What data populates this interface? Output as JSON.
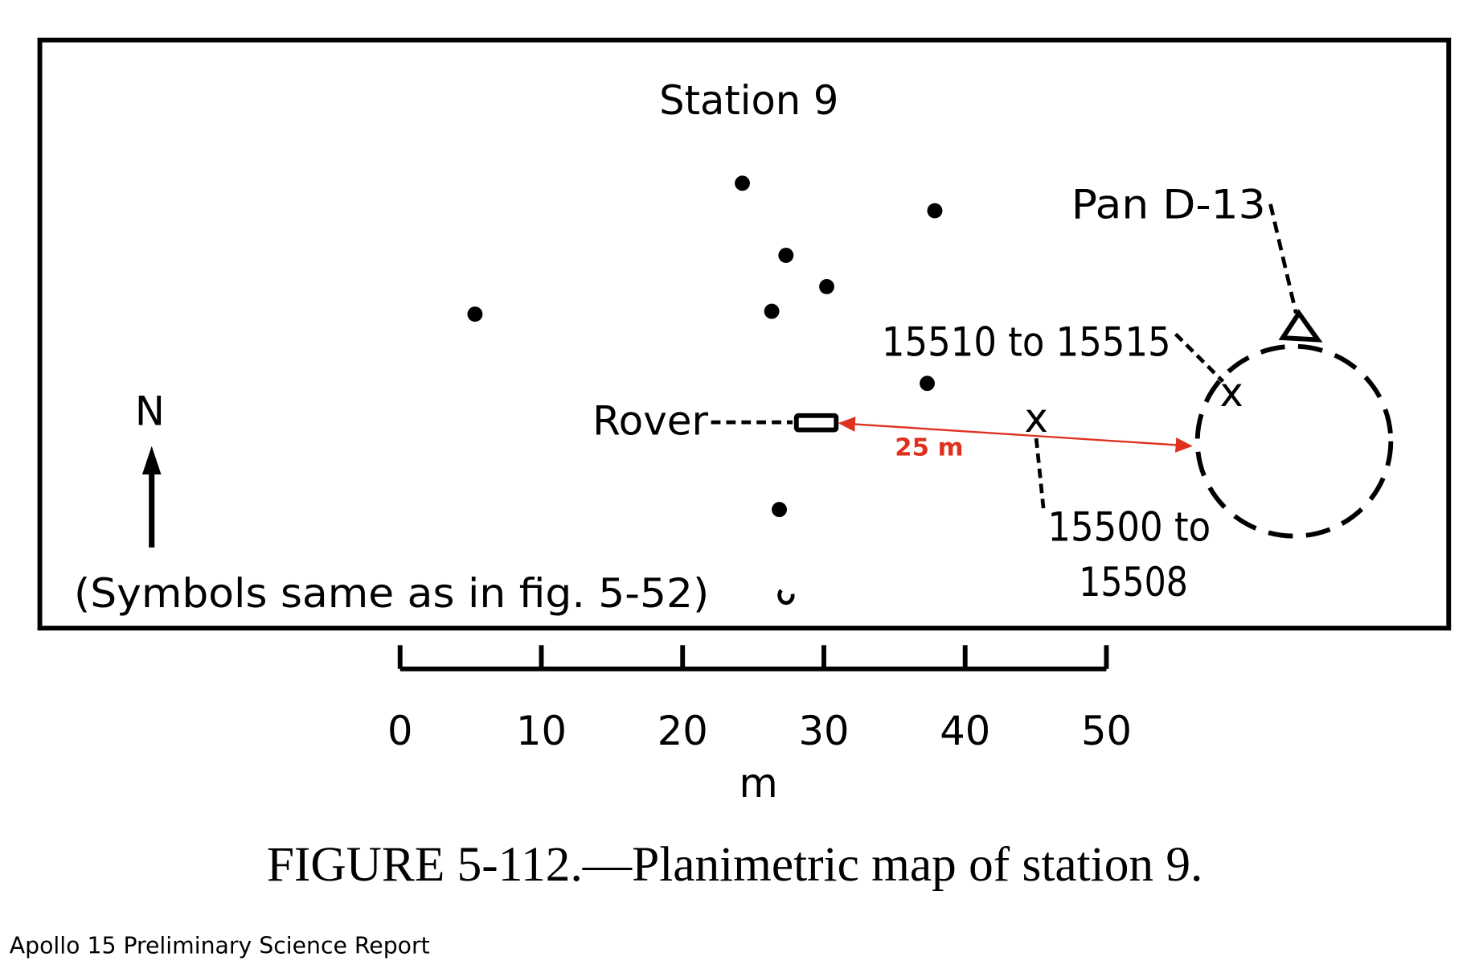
{
  "map": {
    "title": "Station 9",
    "pan_label": "Pan D-13",
    "sample_label_1": "15510 to 15515",
    "rover_label": "Rover",
    "distance_label": "25 m",
    "sample_label_2_line1": "15500 to",
    "sample_label_2_line2": "15508",
    "north_label": "N",
    "symbols_note": "(Symbols same as in fig. 5-52)"
  },
  "scale": {
    "ticks": [
      0,
      10,
      20,
      30,
      40,
      50
    ],
    "unit": "m"
  },
  "caption": "FIGURE 5-112.—Planimetric map of station 9.",
  "source": "Apollo 15 Preliminary Science Report"
}
